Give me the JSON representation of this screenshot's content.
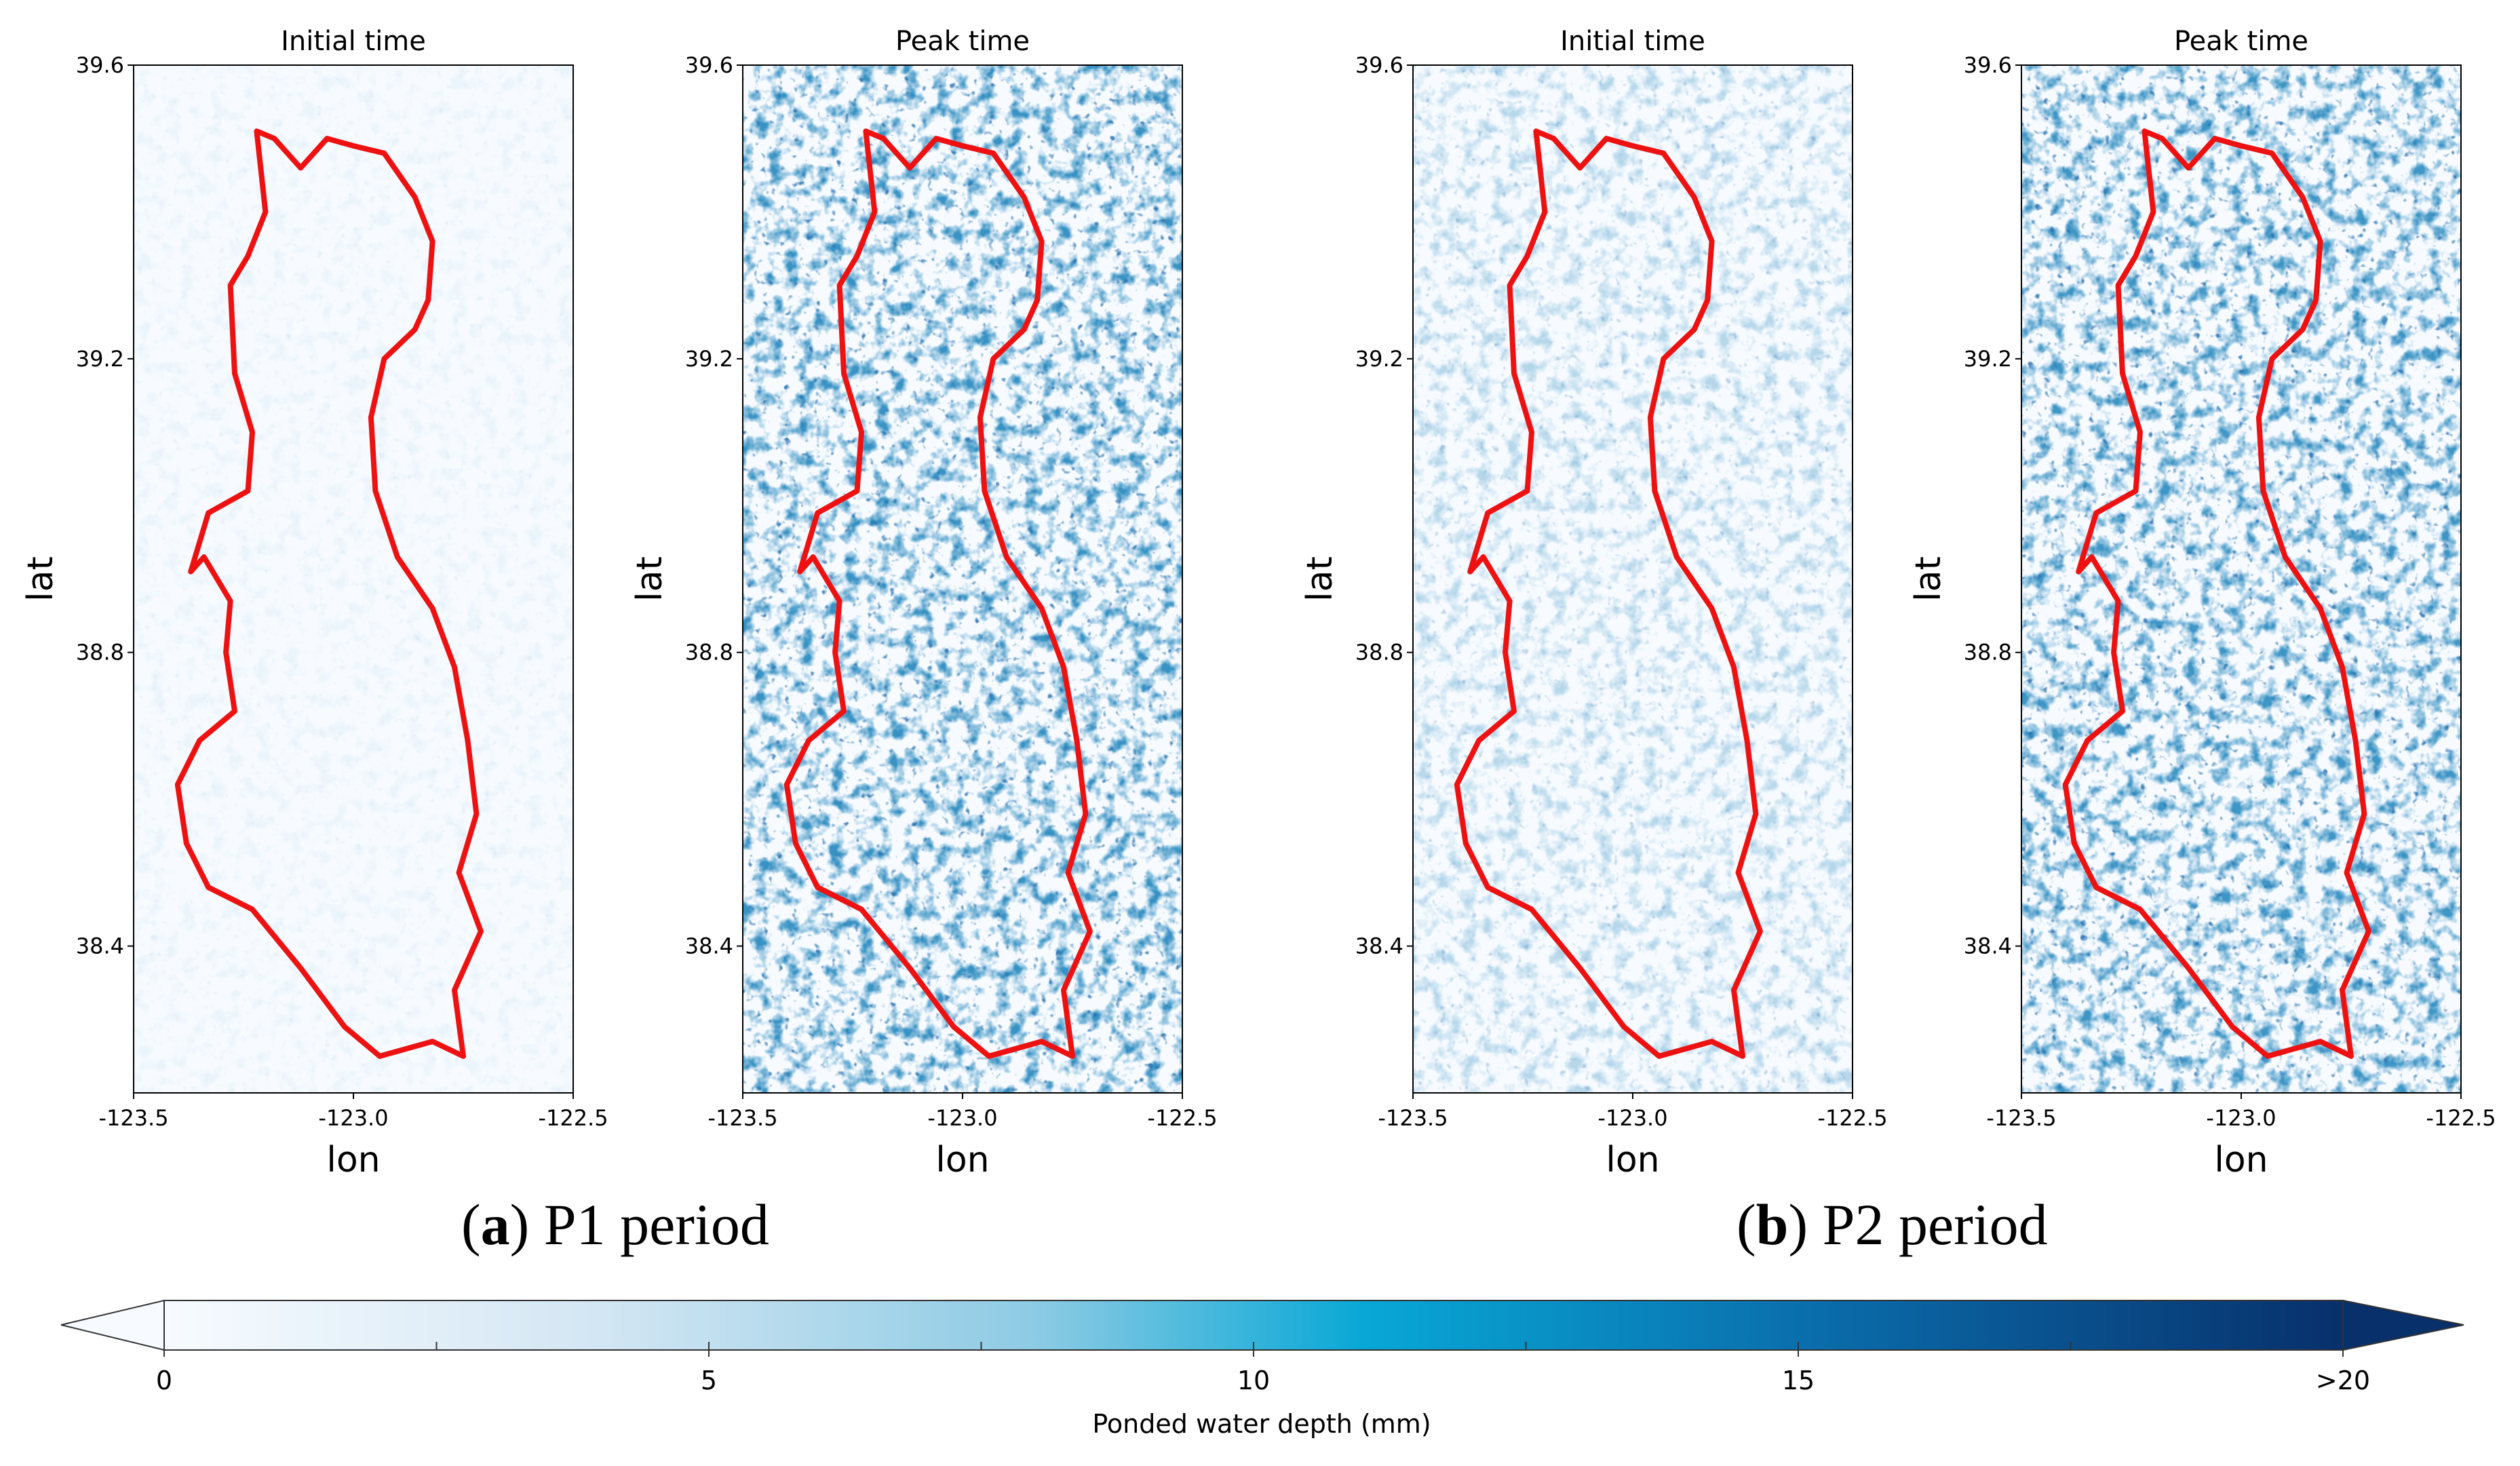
{
  "colors": {
    "boundary": "#ee1111",
    "cmap_low": "#f7fbff",
    "cmap_mid": "#08a8d6",
    "cmap_high": "#08306b",
    "axes_frame": "#000000"
  },
  "axis_text": {
    "xlabel": "lon",
    "ylabel": "lat",
    "xticks": [
      "-123.5",
      "-123.0",
      "-122.5"
    ],
    "yticks": [
      "39.6",
      "39.2",
      "38.8",
      "38.4"
    ]
  },
  "panels": [
    {
      "title": "Initial time",
      "group": "a",
      "intensity": 0.06
    },
    {
      "title": "Peak time",
      "group": "a",
      "intensity": 0.95
    },
    {
      "title": "Initial time",
      "group": "b",
      "intensity": 0.32
    },
    {
      "title": "Peak time",
      "group": "b",
      "intensity": 0.92
    }
  ],
  "captions": {
    "a": {
      "letter": "a",
      "text": " P1 period"
    },
    "b": {
      "letter": "b",
      "text": " P2 period"
    }
  },
  "colorbar": {
    "label": "Ponded water depth (mm)",
    "ticks": [
      "0",
      "5",
      "10",
      "15",
      ">20"
    ],
    "min": 0,
    "max": 20,
    "extend": "both"
  },
  "chart_data": {
    "type": "heatmap",
    "description_units": "mm",
    "xlim": [
      -123.5,
      -122.5
    ],
    "ylim": [
      38.2,
      39.6
    ],
    "colorbar_range": [
      0,
      20
    ],
    "panels": [
      {
        "title": "Initial time",
        "period": "P1 period"
      },
      {
        "title": "Peak time",
        "period": "P1 period"
      },
      {
        "title": "Initial time",
        "period": "P2 period"
      },
      {
        "title": "Peak time",
        "period": "P2 period"
      }
    ]
  }
}
